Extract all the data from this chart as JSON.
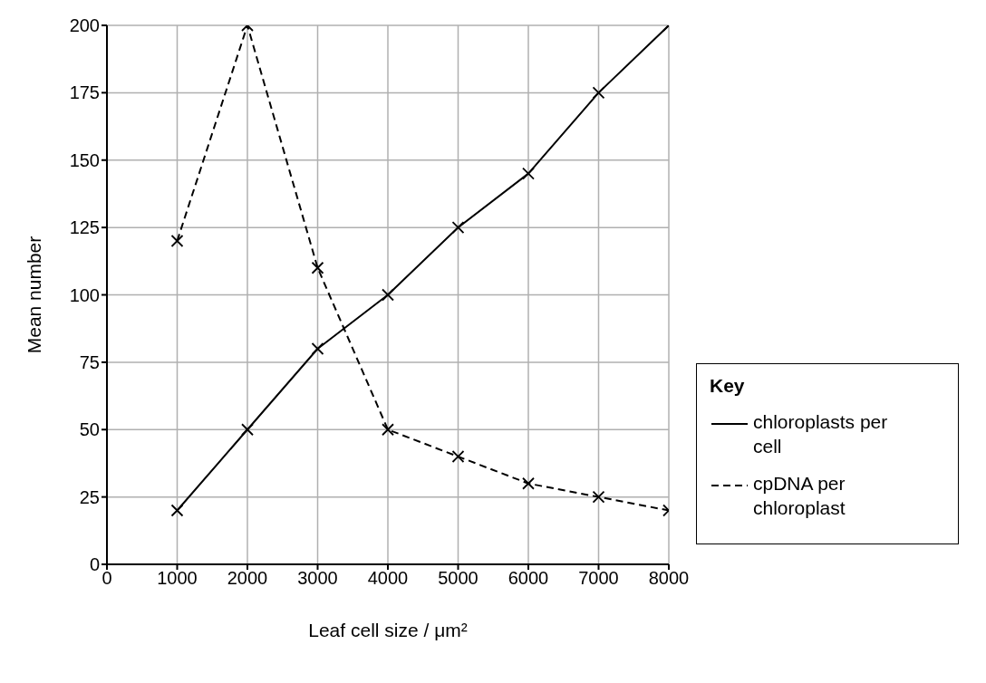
{
  "chart_data": {
    "type": "line",
    "xlabel": "Leaf cell size / μm²",
    "ylabel": "Mean number",
    "legend_title": "Key",
    "x": [
      1000,
      2000,
      3000,
      4000,
      5000,
      6000,
      7000,
      8000
    ],
    "series": [
      {
        "name": "chloroplasts per cell",
        "color": "#000000",
        "line_style": "solid",
        "values": [
          20,
          50,
          80,
          100,
          125,
          145,
          175,
          200
        ]
      },
      {
        "name": "cpDNA per chloroplast",
        "color": "#000000",
        "line_style": "dashed",
        "values": [
          120,
          200,
          110,
          50,
          40,
          30,
          25,
          20
        ]
      }
    ],
    "xlim": [
      0,
      8000
    ],
    "xticks": [
      0,
      1000,
      2000,
      3000,
      4000,
      5000,
      6000,
      7000,
      8000
    ],
    "ylim": [
      0,
      200
    ],
    "yticks": [
      0,
      25,
      50,
      75,
      100,
      125,
      150,
      175,
      200
    ],
    "grid": true,
    "legend": "right",
    "marker": "cross"
  }
}
